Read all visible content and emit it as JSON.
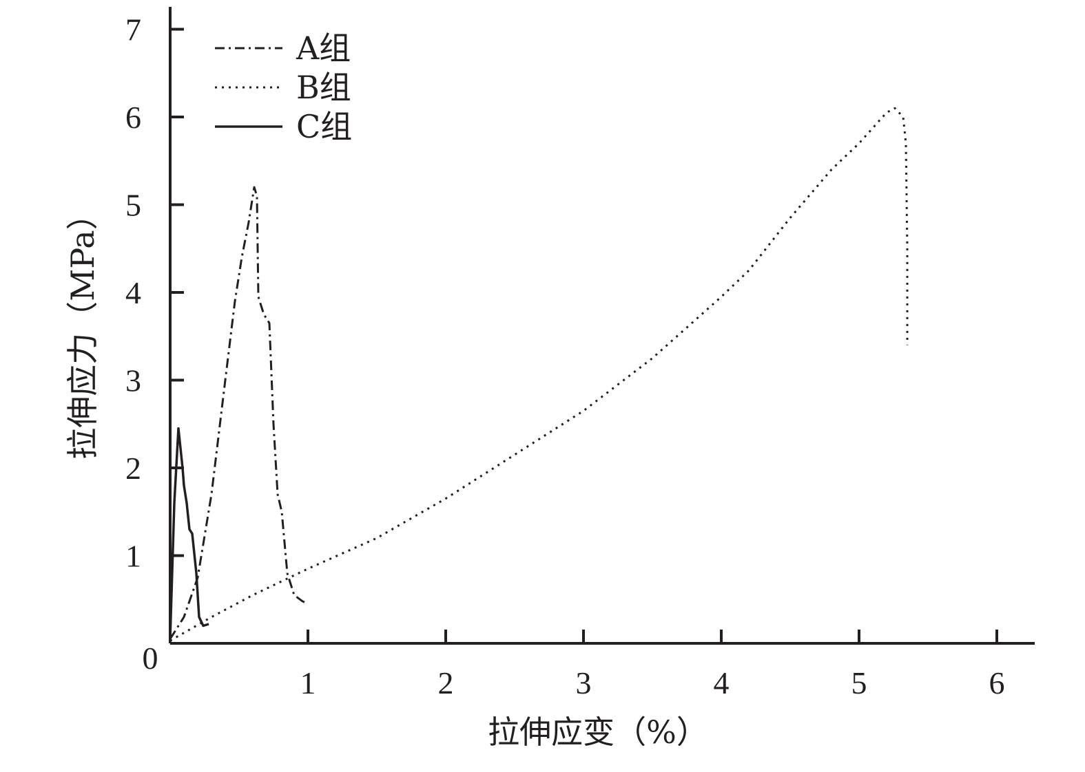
{
  "chart_data": {
    "type": "line",
    "xlabel": "拉伸应变（%）",
    "ylabel": "拉伸应力（MPa）",
    "xlim": [
      0,
      6.25
    ],
    "ylim": [
      0,
      7.2
    ],
    "x_ticks": [
      1,
      2,
      3,
      4,
      5,
      6
    ],
    "x_tick_labels": [
      "1",
      "2",
      "3",
      "4",
      "5",
      "6"
    ],
    "y_ticks": [
      1,
      2,
      3,
      4,
      5,
      6,
      7
    ],
    "y_tick_labels": [
      "1",
      "2",
      "3",
      "4",
      "5",
      "6",
      "7"
    ],
    "origin_label": "0",
    "grid": false,
    "legend_position": "top-left",
    "series": [
      {
        "name": "A组",
        "line_style": "dash-dot",
        "color": "#231f20",
        "points": [
          [
            0.0,
            0.05
          ],
          [
            0.1,
            0.3
          ],
          [
            0.2,
            0.75
          ],
          [
            0.3,
            1.7
          ],
          [
            0.4,
            3.0
          ],
          [
            0.47,
            3.9
          ],
          [
            0.52,
            4.4
          ],
          [
            0.57,
            4.8
          ],
          [
            0.61,
            5.2
          ],
          [
            0.63,
            5.1
          ],
          [
            0.64,
            3.95
          ],
          [
            0.68,
            3.75
          ],
          [
            0.72,
            3.65
          ],
          [
            0.75,
            2.5
          ],
          [
            0.78,
            1.7
          ],
          [
            0.81,
            1.5
          ],
          [
            0.85,
            0.8
          ],
          [
            0.9,
            0.55
          ],
          [
            0.96,
            0.48
          ],
          [
            1.0,
            0.45
          ]
        ]
      },
      {
        "name": "B组",
        "line_style": "dotted",
        "color": "#231f20",
        "points": [
          [
            0.0,
            0.03
          ],
          [
            0.3,
            0.3
          ],
          [
            0.6,
            0.55
          ],
          [
            1.0,
            0.85
          ],
          [
            1.5,
            1.2
          ],
          [
            2.0,
            1.65
          ],
          [
            2.5,
            2.15
          ],
          [
            3.0,
            2.65
          ],
          [
            3.5,
            3.25
          ],
          [
            4.0,
            3.95
          ],
          [
            4.2,
            4.25
          ],
          [
            4.5,
            4.85
          ],
          [
            4.8,
            5.4
          ],
          [
            5.0,
            5.7
          ],
          [
            5.2,
            6.05
          ],
          [
            5.26,
            6.1
          ],
          [
            5.32,
            6.0
          ],
          [
            5.34,
            5.7
          ],
          [
            5.35,
            4.5
          ],
          [
            5.35,
            3.4
          ]
        ]
      },
      {
        "name": "C组",
        "line_style": "solid",
        "color": "#231f20",
        "points": [
          [
            0.0,
            0.05
          ],
          [
            0.03,
            1.6
          ],
          [
            0.06,
            2.45
          ],
          [
            0.09,
            2.0
          ],
          [
            0.1,
            1.8
          ],
          [
            0.12,
            1.6
          ],
          [
            0.14,
            1.3
          ],
          [
            0.16,
            1.25
          ],
          [
            0.19,
            0.8
          ],
          [
            0.21,
            0.3
          ],
          [
            0.24,
            0.2
          ],
          [
            0.28,
            0.22
          ]
        ]
      }
    ]
  }
}
